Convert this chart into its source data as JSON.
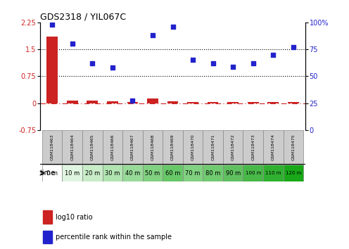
{
  "title": "GDS2318 / YIL067C",
  "samples": [
    "GSM118463",
    "GSM118464",
    "GSM118465",
    "GSM118466",
    "GSM118467",
    "GSM118468",
    "GSM118469",
    "GSM118470",
    "GSM118471",
    "GSM118472",
    "GSM118473",
    "GSM118474",
    "GSM118475"
  ],
  "time_labels": [
    "0 m",
    "10 m",
    "20 m",
    "30 m",
    "40 m",
    "50 m",
    "60 m",
    "70 m",
    "80 m",
    "90 m",
    "100 m",
    "110 m",
    "120 m"
  ],
  "log10_ratio": [
    1.85,
    0.07,
    0.06,
    0.04,
    0.03,
    0.12,
    0.05,
    0.02,
    0.03,
    0.02,
    0.02,
    0.02,
    0.03
  ],
  "percentile_rank": [
    98,
    80,
    62,
    58,
    27,
    88,
    96,
    65,
    62,
    59,
    62,
    70,
    77
  ],
  "bar_color": "#cc2222",
  "dot_color": "#2222cc",
  "ylim_left": [
    -0.75,
    2.25
  ],
  "ylim_right": [
    0,
    100
  ],
  "yticks_left": [
    -0.75,
    0,
    0.75,
    1.5,
    2.25
  ],
  "yticks_right": [
    0,
    25,
    50,
    75,
    100
  ],
  "hline_y_left": [
    0.75,
    1.5
  ],
  "time_colors": [
    "#ffffff",
    "#e0f5e0",
    "#c8ecc8",
    "#b0e3b0",
    "#98da98",
    "#80d180",
    "#68c868",
    "#80d180",
    "#70ca70",
    "#60c060",
    "#48b848",
    "#30b030",
    "#18a818"
  ],
  "legend_ratio_label": "log10 ratio",
  "legend_percentile_label": "percentile rank within the sample"
}
